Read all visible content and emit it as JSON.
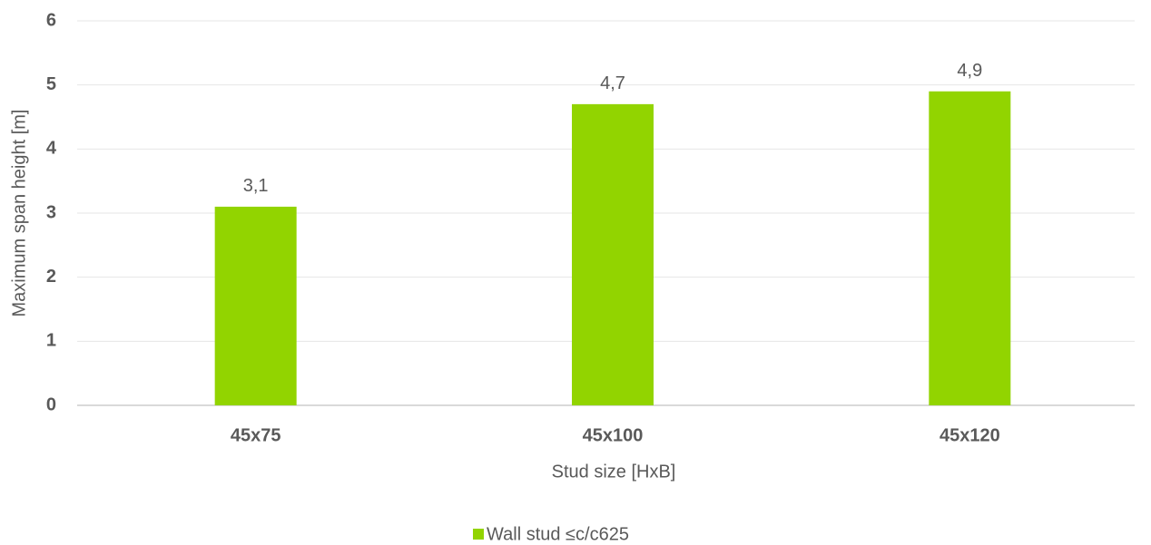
{
  "chart_data": {
    "type": "bar",
    "categories": [
      "45x75",
      "45x100",
      "45x120"
    ],
    "series": [
      {
        "name": "Wall stud ≤c/c625",
        "color": "#92d400",
        "values": [
          3.1,
          4.7,
          4.9
        ],
        "value_labels": [
          "3,1",
          "4,7",
          "4,9"
        ]
      }
    ],
    "xlabel": "Stud size [HxB]",
    "ylabel": "Maximum span height [m]",
    "ylim": [
      0,
      6
    ],
    "yticks": [
      0,
      1,
      2,
      3,
      4,
      5,
      6
    ],
    "grid": true,
    "legend": "bottom"
  }
}
